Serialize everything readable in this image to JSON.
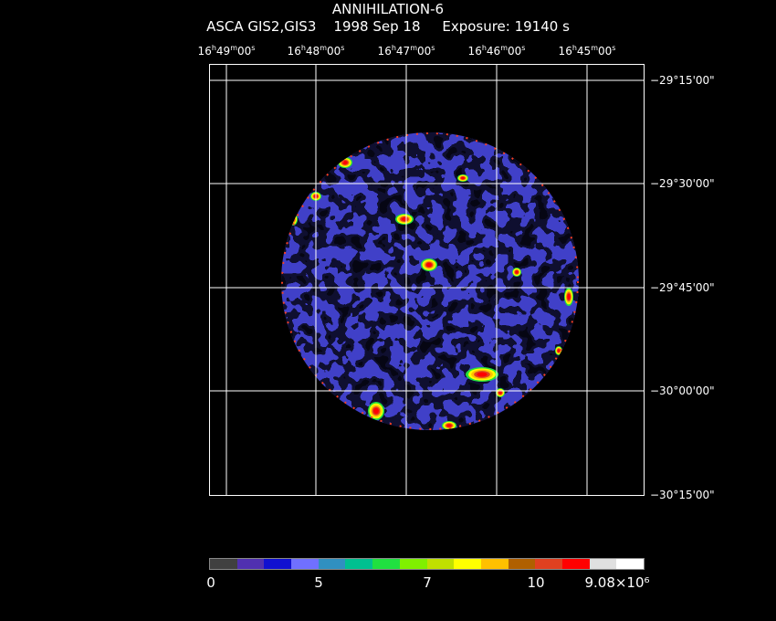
{
  "header": {
    "title": "ANNIHILATION-6",
    "subtitle": "ASCA GIS2,GIS3    1998 Sep 18     Exposure: 19140 s"
  },
  "axes": {
    "ra_labels": [
      {
        "h": "16",
        "m": "49",
        "s": "00"
      },
      {
        "h": "16",
        "m": "48",
        "s": "00"
      },
      {
        "h": "16",
        "m": "47",
        "s": "00"
      },
      {
        "h": "16",
        "m": "46",
        "s": "00"
      },
      {
        "h": "16",
        "m": "45",
        "s": "00"
      }
    ],
    "dec_labels": [
      "−29°15'00\"",
      "−29°30'00\"",
      "−29°45'00\"",
      "−30°00'00\"",
      "−30°15'00\""
    ]
  },
  "colorbar": {
    "colors": [
      "#404040",
      "#5030b0",
      "#1010d0",
      "#7070ff",
      "#3090c0",
      "#00c090",
      "#20e040",
      "#80f000",
      "#c0e000",
      "#ffff00",
      "#ffc000",
      "#b06000",
      "#e04020",
      "#ff0000",
      "#e0e0e0",
      "#ffffff"
    ],
    "labels": [
      "0",
      "5",
      "7",
      "10",
      "9.08×10⁶"
    ]
  },
  "map": {
    "background_color": "#000000",
    "grid_color": "#ffffff"
  }
}
